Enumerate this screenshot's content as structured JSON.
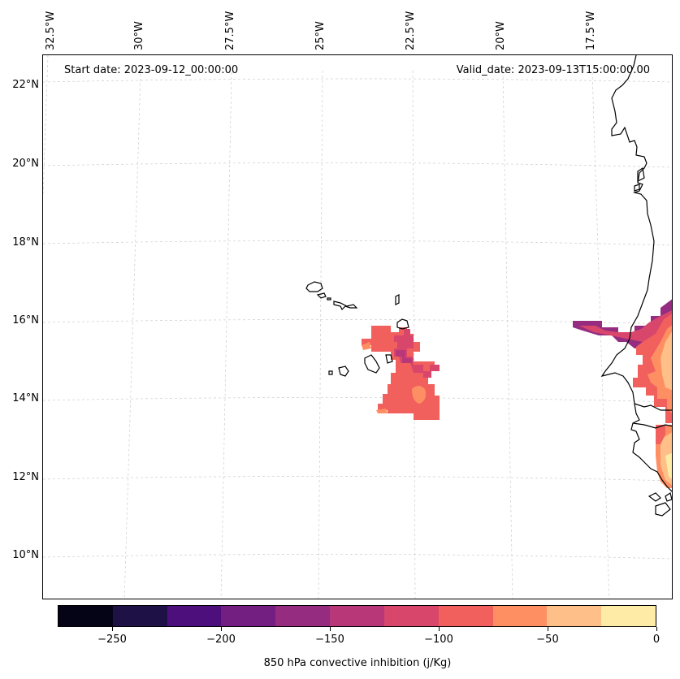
{
  "map": {
    "start_date": "Start date: 2023-09-12_00:00:00",
    "valid_date": "Valid_date: 2023-09-13T15:00:00.00",
    "lon_labels": [
      "32.5°W",
      "30°W",
      "27.5°W",
      "25°W",
      "22.5°W",
      "20°W",
      "17.5°W"
    ],
    "lat_labels": [
      "22°N",
      "20°N",
      "18°N",
      "16°N",
      "14°N",
      "12°N",
      "10°N"
    ],
    "coast_color": "#000000",
    "grid_color": "#cccccc"
  },
  "colorbar": {
    "title": "850 hPa convective inhibition (j/Kg)",
    "range": [
      -275,
      0
    ],
    "tick_labels": [
      "−250",
      "−200",
      "−150",
      "−100",
      "−50",
      "0"
    ],
    "tick_values": [
      -250,
      -200,
      -150,
      -100,
      -50,
      0
    ],
    "colors": [
      "#050416",
      "#1e1146",
      "#4d0f7b",
      "#721f81",
      "#952c80",
      "#b73779",
      "#d8466c",
      "#f1605d",
      "#fe8f62",
      "#fec088",
      "#feeba6"
    ]
  }
}
